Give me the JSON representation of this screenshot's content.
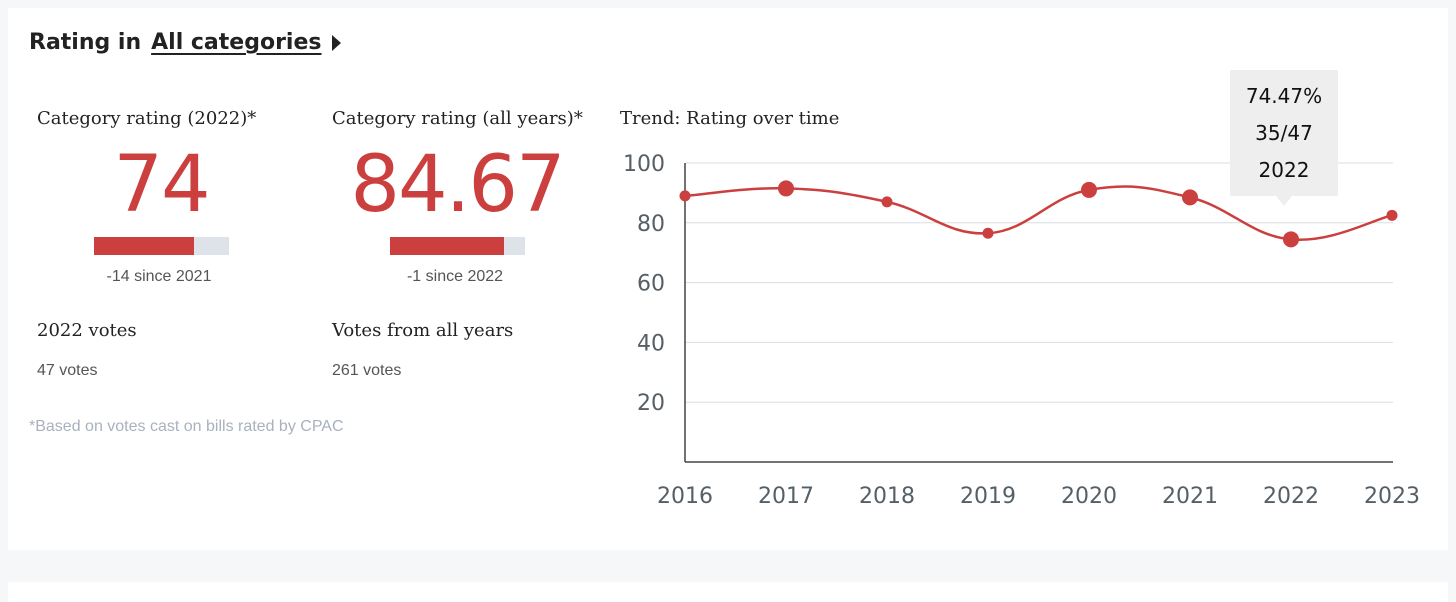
{
  "header": {
    "prefix": "Rating in",
    "link": "All categories"
  },
  "metrics": [
    {
      "label": "Category rating (2022)*",
      "value": "74",
      "bar_fill_percent": 74,
      "since": "-14 since 2021",
      "votes_label": "2022 votes",
      "votes_value": "47 votes"
    },
    {
      "label": "Category rating (all years)*",
      "value": "84.67",
      "bar_fill_percent": 84.67,
      "since": "-1 since 2022",
      "votes_label": "Votes from all years",
      "votes_value": "261 votes"
    }
  ],
  "footnote": "*Based on votes cast on bills rated by CPAC",
  "colors": {
    "accent": "#cc3f3f",
    "track": "#dde3e9",
    "grid": "#d8dde2"
  },
  "tooltip": {
    "line1": "74.47%",
    "line2": "35/47",
    "line3": "2022"
  },
  "chart_data": {
    "type": "line",
    "title": "Trend: Rating over time",
    "categories": [
      "2016",
      "2017",
      "2018",
      "2019",
      "2020",
      "2021",
      "2022",
      "2023"
    ],
    "values": [
      89,
      91.5,
      87,
      76.5,
      91,
      88.5,
      74.47,
      82.5
    ],
    "y_ticks": [
      20,
      40,
      60,
      80,
      100
    ],
    "ylim": [
      0,
      100
    ],
    "grid": true,
    "highlighted_points": [
      "2017",
      "2020",
      "2021",
      "2022"
    ]
  }
}
